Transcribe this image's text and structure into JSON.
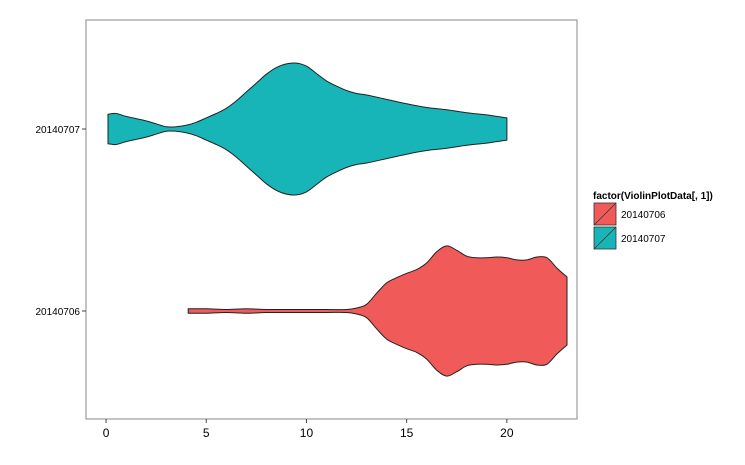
{
  "chart_data": {
    "type": "violin",
    "orientation": "horizontal",
    "xlabel": "",
    "ylabel": "",
    "xlim": [
      -1.0,
      23.5
    ],
    "x_ticks": [
      0,
      5,
      10,
      15,
      20
    ],
    "categories": [
      "20140706",
      "20140707"
    ],
    "legend": {
      "title": "factor(ViolinPlotData[, 1])",
      "position": "right",
      "items": [
        "20140706",
        "20140707"
      ]
    },
    "series": [
      {
        "name": "20140706",
        "color": "#F05B5A",
        "range": [
          4.1,
          23.0
        ],
        "density_profile": [
          [
            4.1,
            0.03
          ],
          [
            5.0,
            0.03
          ],
          [
            6.0,
            0.02
          ],
          [
            7.0,
            0.03
          ],
          [
            8.0,
            0.02
          ],
          [
            9.0,
            0.02
          ],
          [
            10.0,
            0.02
          ],
          [
            11.0,
            0.02
          ],
          [
            12.0,
            0.02
          ],
          [
            12.5,
            0.04
          ],
          [
            13.0,
            0.09
          ],
          [
            13.5,
            0.24
          ],
          [
            14.0,
            0.38
          ],
          [
            14.5,
            0.45
          ],
          [
            15.0,
            0.51
          ],
          [
            15.5,
            0.56
          ],
          [
            16.0,
            0.65
          ],
          [
            16.5,
            0.8
          ],
          [
            17.0,
            0.88
          ],
          [
            17.5,
            0.82
          ],
          [
            18.0,
            0.74
          ],
          [
            18.5,
            0.72
          ],
          [
            19.0,
            0.72
          ],
          [
            19.5,
            0.73
          ],
          [
            20.0,
            0.72
          ],
          [
            20.5,
            0.69
          ],
          [
            21.0,
            0.69
          ],
          [
            21.5,
            0.73
          ],
          [
            22.0,
            0.72
          ],
          [
            22.5,
            0.58
          ],
          [
            23.0,
            0.46
          ]
        ]
      },
      {
        "name": "20140707",
        "color": "#18B5B8",
        "range": [
          0.1,
          20.0
        ],
        "density_profile": [
          [
            0.1,
            0.2
          ],
          [
            0.5,
            0.21
          ],
          [
            1.0,
            0.17
          ],
          [
            1.5,
            0.14
          ],
          [
            2.0,
            0.11
          ],
          [
            2.5,
            0.07
          ],
          [
            3.0,
            0.03
          ],
          [
            3.5,
            0.03
          ],
          [
            4.0,
            0.05
          ],
          [
            4.5,
            0.09
          ],
          [
            5.0,
            0.15
          ],
          [
            5.5,
            0.21
          ],
          [
            6.0,
            0.28
          ],
          [
            6.5,
            0.38
          ],
          [
            7.0,
            0.5
          ],
          [
            7.5,
            0.62
          ],
          [
            8.0,
            0.74
          ],
          [
            8.5,
            0.83
          ],
          [
            9.0,
            0.88
          ],
          [
            9.5,
            0.89
          ],
          [
            10.0,
            0.85
          ],
          [
            10.5,
            0.75
          ],
          [
            11.0,
            0.65
          ],
          [
            11.5,
            0.58
          ],
          [
            12.0,
            0.52
          ],
          [
            12.5,
            0.48
          ],
          [
            13.0,
            0.46
          ],
          [
            14.0,
            0.4
          ],
          [
            15.0,
            0.34
          ],
          [
            16.0,
            0.29
          ],
          [
            17.0,
            0.26
          ],
          [
            18.0,
            0.22
          ],
          [
            19.0,
            0.19
          ],
          [
            19.5,
            0.17
          ],
          [
            20.0,
            0.15
          ]
        ]
      }
    ]
  }
}
